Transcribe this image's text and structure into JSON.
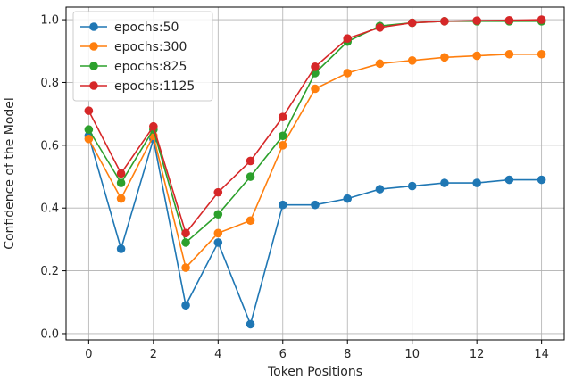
{
  "chart_data": {
    "type": "line",
    "xlabel": "Token Positions",
    "ylabel": "Confidence of the Model",
    "xlim": [
      -0.7,
      14.7
    ],
    "ylim": [
      -0.02,
      1.04
    ],
    "xticks": [
      0,
      2,
      4,
      6,
      8,
      10,
      12,
      14
    ],
    "xtick_labels": [
      "0",
      "2",
      "4",
      "6",
      "8",
      "10",
      "12",
      "14"
    ],
    "yticks": [
      0.0,
      0.2,
      0.4,
      0.6,
      0.8,
      1.0
    ],
    "ytick_labels": [
      "0.0",
      "0.2",
      "0.4",
      "0.6",
      "0.8",
      "1.0"
    ],
    "grid": true,
    "legend_position": "upper-left",
    "x": [
      0,
      1,
      2,
      3,
      4,
      5,
      6,
      7,
      8,
      9,
      10,
      11,
      12,
      13,
      14
    ],
    "series": [
      {
        "name": "epochs:50",
        "color": "#1f77b4",
        "values": [
          0.63,
          0.27,
          0.62,
          0.09,
          0.29,
          0.03,
          0.41,
          0.41,
          0.43,
          0.46,
          0.47,
          0.48,
          0.48,
          0.49,
          0.49
        ]
      },
      {
        "name": "epochs:300",
        "color": "#ff7f0e",
        "values": [
          0.62,
          0.43,
          0.63,
          0.21,
          0.32,
          0.36,
          0.6,
          0.78,
          0.83,
          0.86,
          0.87,
          0.88,
          0.885,
          0.89,
          0.89
        ]
      },
      {
        "name": "epochs:825",
        "color": "#2ca02c",
        "values": [
          0.65,
          0.48,
          0.65,
          0.29,
          0.38,
          0.5,
          0.63,
          0.83,
          0.93,
          0.98,
          0.99,
          0.995,
          0.995,
          0.995,
          0.995
        ]
      },
      {
        "name": "epochs:1125",
        "color": "#d62728",
        "values": [
          0.71,
          0.51,
          0.66,
          0.32,
          0.45,
          0.55,
          0.69,
          0.85,
          0.94,
          0.975,
          0.99,
          0.995,
          0.997,
          0.998,
          1.0
        ]
      }
    ]
  }
}
